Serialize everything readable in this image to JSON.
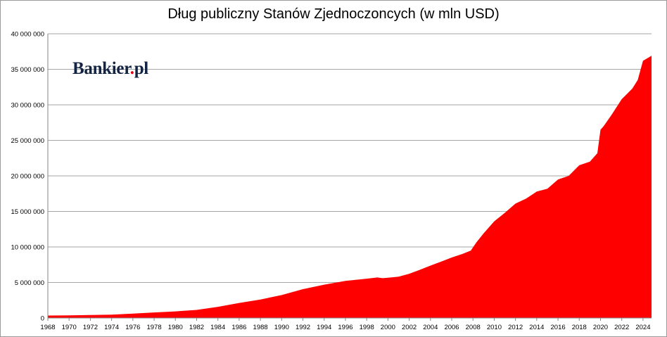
{
  "chart_data": {
    "type": "area",
    "title": "Dług publiczny Stanów Zjednoczoncych (w mln USD)",
    "xlabel": "",
    "ylabel": "",
    "ylim": [
      0,
      40000000
    ],
    "xlim": [
      1968,
      2024.8
    ],
    "y_ticks": [
      0,
      5000000,
      10000000,
      15000000,
      20000000,
      25000000,
      30000000,
      35000000,
      40000000
    ],
    "y_tick_labels": [
      "0",
      "5 000 000",
      "10 000 000",
      "15 000 000",
      "20 000 000",
      "25 000 000",
      "30 000 000",
      "35 000 000",
      "40 000 000"
    ],
    "x_tick_labels": [
      "1968",
      "1970",
      "1972",
      "1974",
      "1976",
      "1978",
      "1980",
      "1982",
      "1984",
      "1986",
      "1988",
      "1990",
      "1992",
      "1994",
      "1996",
      "1998",
      "2000",
      "2002",
      "2004",
      "2006",
      "2008",
      "2010",
      "2012",
      "2014",
      "2016",
      "2018",
      "2020",
      "2022",
      "2024"
    ],
    "grid": "horizontal",
    "legend": "none",
    "series": [
      {
        "color": "#ff0000",
        "x": [
          1968,
          1970,
          1972,
          1974,
          1976,
          1978,
          1980,
          1982,
          1984,
          1986,
          1988,
          1990,
          1992,
          1994,
          1996,
          1998,
          1999,
          1999.5,
          2000,
          2001,
          2002,
          2003,
          2004,
          2005,
          2006,
          2007,
          2007.8,
          2008.3,
          2009,
          2010,
          2011,
          2012,
          2013,
          2014,
          2015,
          2016,
          2017,
          2018,
          2019,
          2019.7,
          2020,
          2020.3,
          2021,
          2022,
          2023,
          2023.5,
          2024,
          2024.8
        ],
        "values": [
          350000,
          370000,
          430000,
          470000,
          620000,
          780000,
          930000,
          1140000,
          1570000,
          2120000,
          2600000,
          3230000,
          4060000,
          4690000,
          5220000,
          5530000,
          5700000,
          5600000,
          5660000,
          5810000,
          6230000,
          6780000,
          7380000,
          7930000,
          8510000,
          9010000,
          9500000,
          10600000,
          11900000,
          13600000,
          14800000,
          16100000,
          16800000,
          17800000,
          18200000,
          19500000,
          20000000,
          21500000,
          22000000,
          23200000,
          26500000,
          27000000,
          28500000,
          30800000,
          32300000,
          33500000,
          36200000,
          36900000
        ]
      }
    ]
  },
  "logo": {
    "brand": "Bankier",
    "dot": ".",
    "suffix": "pl"
  }
}
